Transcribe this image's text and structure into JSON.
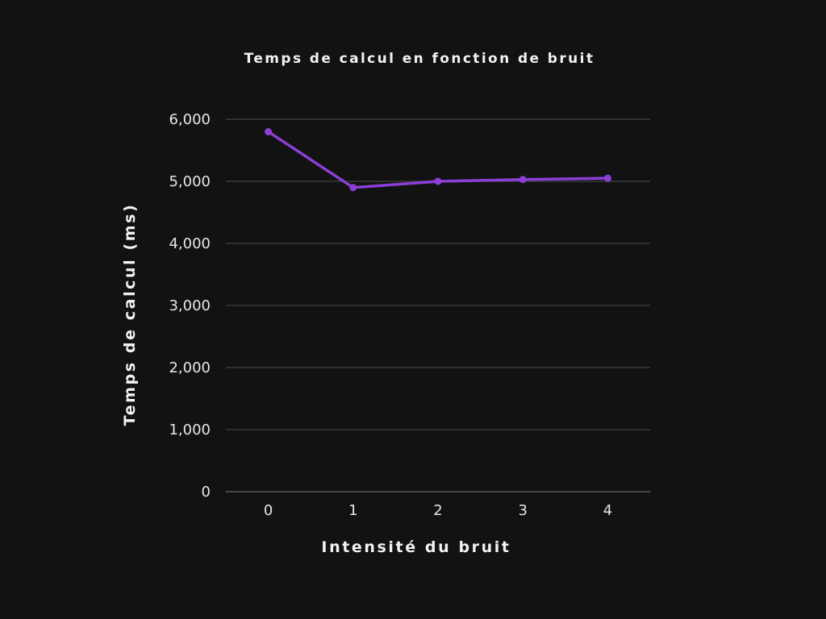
{
  "chart_data": {
    "type": "line",
    "title": "Temps de calcul en fonction de bruit",
    "xlabel": "Intensité du bruit",
    "ylabel": "Temps de calcul (ms)",
    "categories": [
      "0",
      "1",
      "2",
      "3",
      "4"
    ],
    "series": [
      {
        "values": [
          5800,
          4900,
          5000,
          5030,
          5050
        ]
      }
    ],
    "ylim": [
      0,
      6000
    ],
    "y_ticks": [
      0,
      1000,
      2000,
      3000,
      4000,
      5000,
      6000
    ],
    "y_tick_labels": [
      "0",
      "1,000",
      "2,000",
      "3,000",
      "4,000",
      "5,000",
      "6,000"
    ],
    "grid": true,
    "legend": "none",
    "colors": {
      "background": "#121212",
      "line": "#8c3fd6",
      "grid": "#3a3a3a",
      "text": "#f2f2f2"
    }
  }
}
